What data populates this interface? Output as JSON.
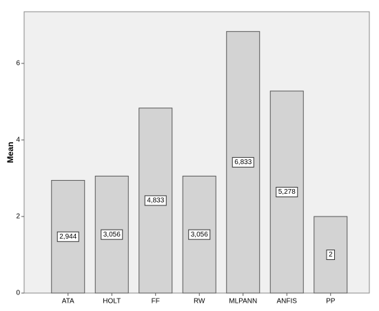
{
  "chart_data": {
    "type": "bar",
    "y_label": "Mean",
    "categories": [
      "ATA",
      "HOLT",
      "FF",
      "RW",
      "MLPANN",
      "ANFIS",
      "PP"
    ],
    "values": [
      2.944,
      3.056,
      4.833,
      3.056,
      6.833,
      5.278,
      2
    ],
    "value_labels": [
      "2,944",
      "3,056",
      "4,833",
      "3,056",
      "6,833",
      "5,278",
      "2"
    ],
    "color": "#d3d3d3",
    "ylim": [
      0,
      7.35
    ],
    "yticks": [
      0,
      2,
      4,
      6
    ],
    "grid": false
  }
}
